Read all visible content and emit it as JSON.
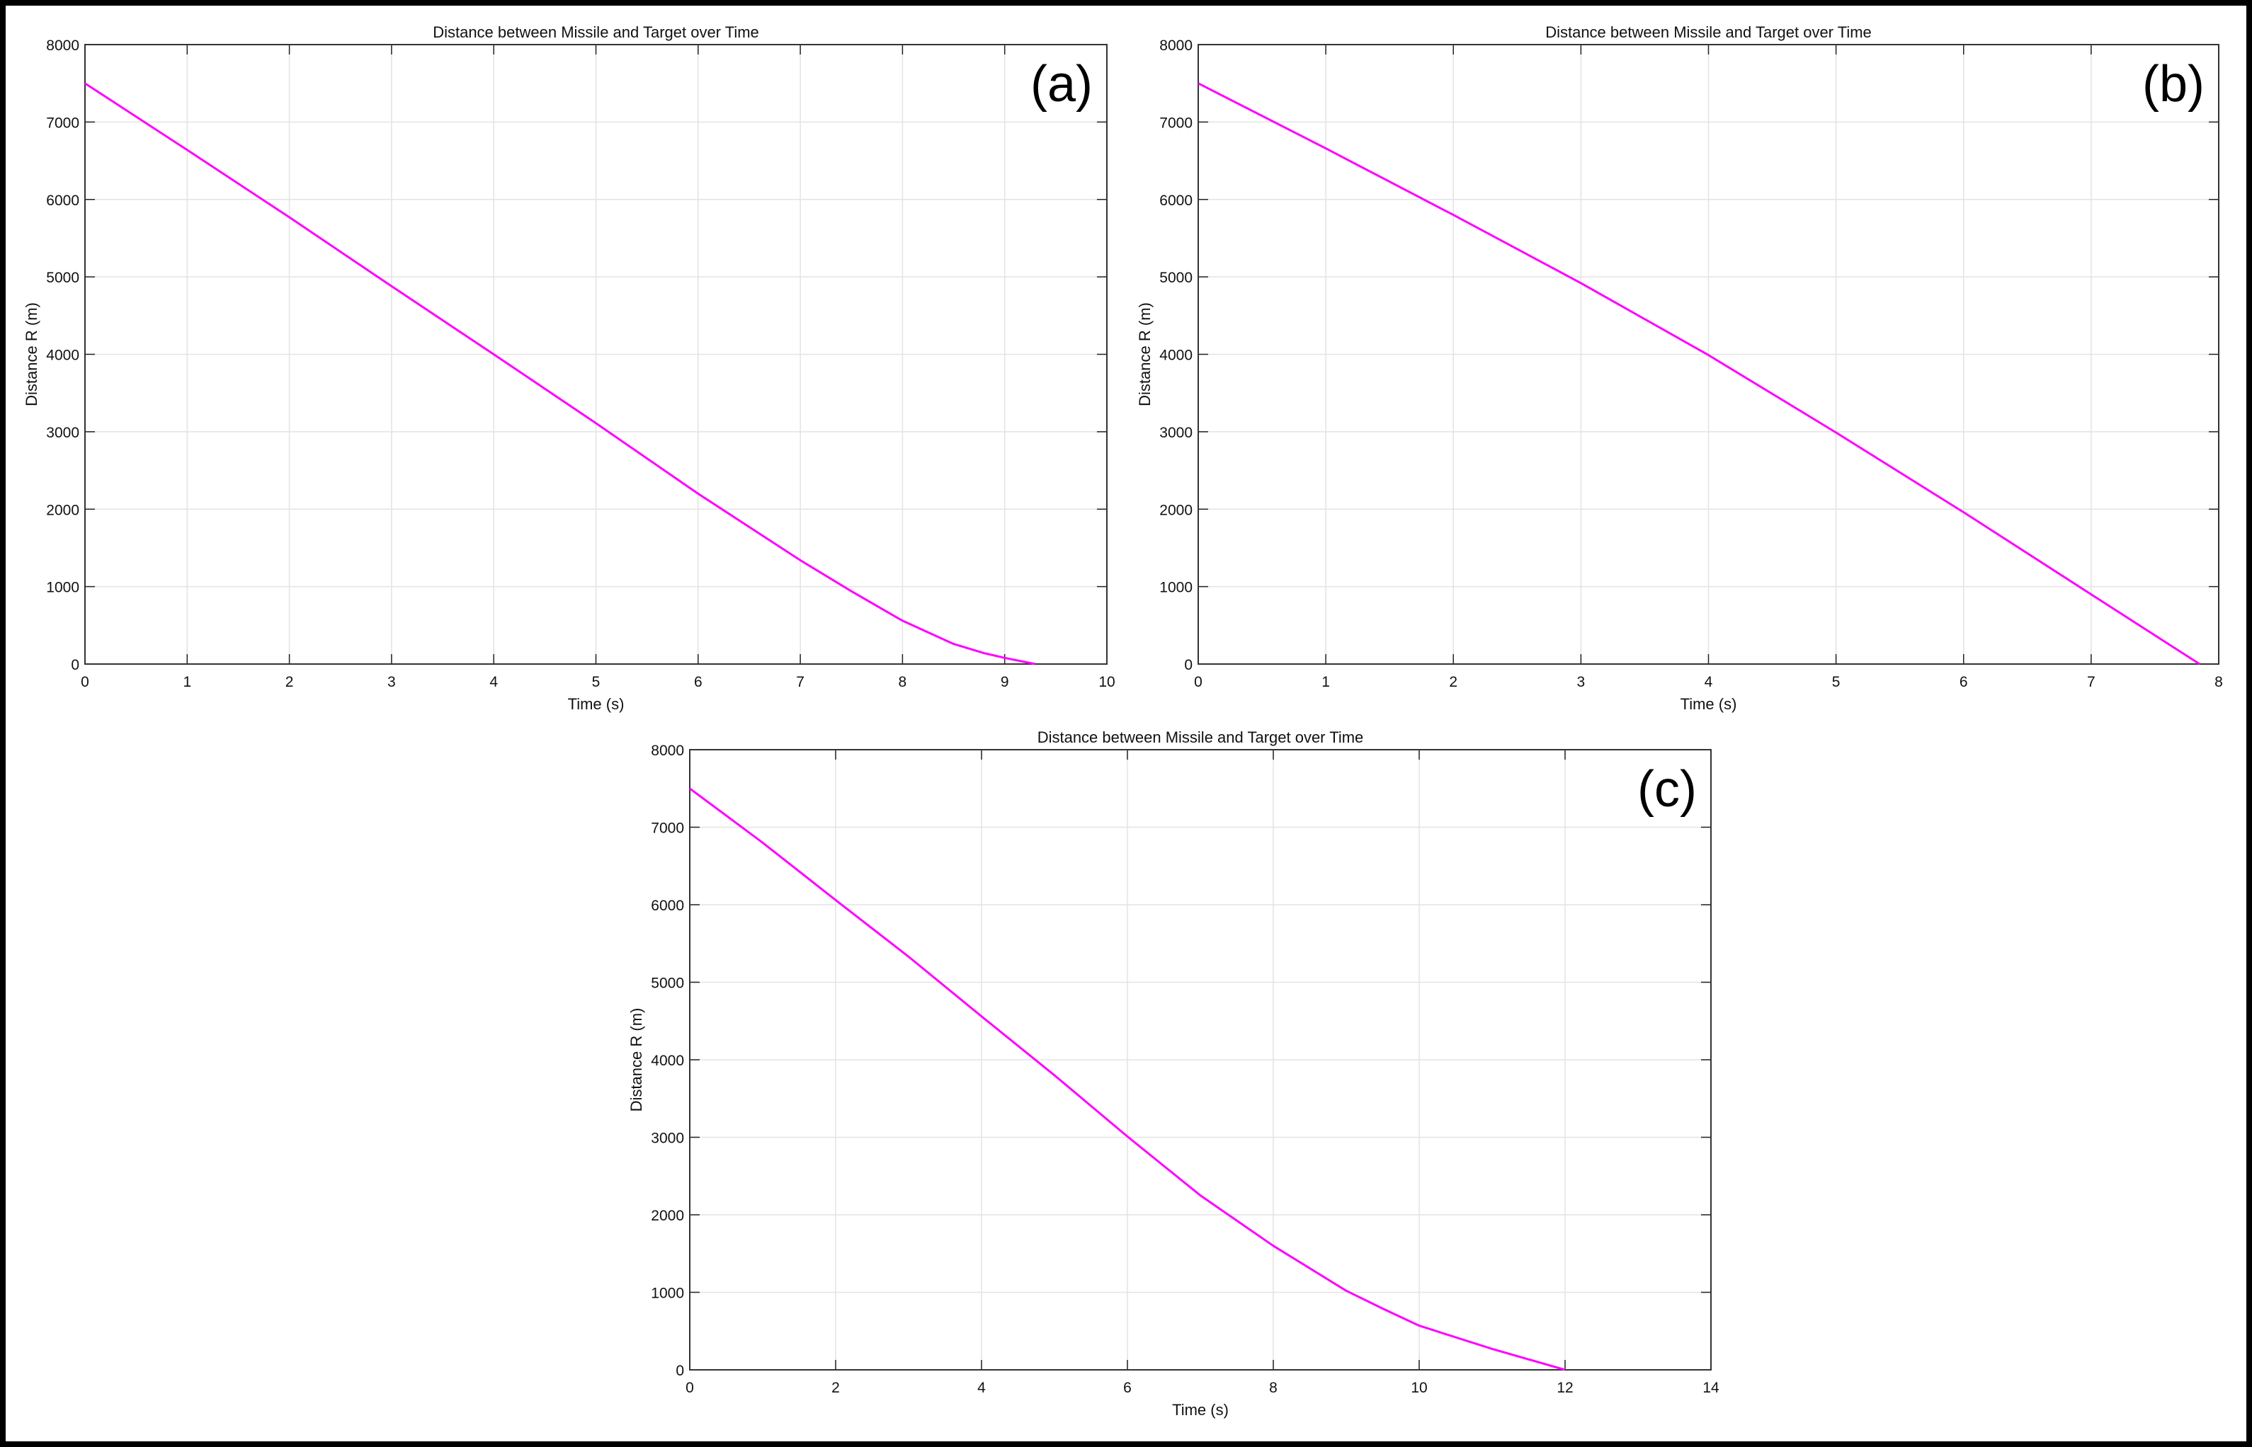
{
  "chart_data": [
    {
      "type": "line",
      "panel_label": "(a)",
      "title": "Distance between Missile and Target over Time",
      "xlabel": "Time (s)",
      "ylabel": "Distance R (m)",
      "xlim": [
        0,
        10
      ],
      "ylim": [
        0,
        8000
      ],
      "xticks": [
        0,
        1,
        2,
        3,
        4,
        5,
        6,
        7,
        8,
        9,
        10
      ],
      "yticks": [
        0,
        1000,
        2000,
        3000,
        4000,
        5000,
        6000,
        7000,
        8000
      ],
      "grid": true,
      "color": "#ff00ff",
      "series": [
        {
          "x": [
            0,
            1,
            2,
            3,
            4,
            5,
            6,
            7,
            7.5,
            8,
            8.5,
            8.8,
            9,
            9.3
          ],
          "y": [
            7500,
            6640,
            5770,
            4880,
            4000,
            3110,
            2200,
            1340,
            940,
            560,
            260,
            140,
            80,
            0
          ]
        }
      ]
    },
    {
      "type": "line",
      "panel_label": "(b)",
      "title": "Distance between Missile and Target over Time",
      "xlabel": "Time (s)",
      "ylabel": "Distance R (m)",
      "xlim": [
        0,
        8
      ],
      "ylim": [
        0,
        8000
      ],
      "xticks": [
        0,
        1,
        2,
        3,
        4,
        5,
        6,
        7,
        8
      ],
      "yticks": [
        0,
        1000,
        2000,
        3000,
        4000,
        5000,
        6000,
        7000,
        8000
      ],
      "grid": true,
      "color": "#ff00ff",
      "series": [
        {
          "x": [
            0,
            1,
            2,
            3,
            4,
            5,
            6,
            7,
            7.85
          ],
          "y": [
            7500,
            6660,
            5800,
            4920,
            3990,
            2990,
            1960,
            900,
            0
          ]
        }
      ]
    },
    {
      "type": "line",
      "panel_label": "(c)",
      "title": "Distance between Missile and Target over Time",
      "xlabel": "Time (s)",
      "ylabel": "Distance R (m)",
      "xlim": [
        0,
        14
      ],
      "ylim": [
        0,
        8000
      ],
      "xticks": [
        0,
        2,
        4,
        6,
        8,
        10,
        12,
        14
      ],
      "yticks": [
        0,
        1000,
        2000,
        3000,
        4000,
        5000,
        6000,
        7000,
        8000
      ],
      "grid": true,
      "color": "#ff00ff",
      "series": [
        {
          "x": [
            0,
            1,
            2,
            3,
            4,
            5,
            6,
            7,
            8,
            9,
            9.5,
            10,
            11,
            12
          ],
          "y": [
            7500,
            6800,
            6060,
            5330,
            4560,
            3800,
            3010,
            2250,
            1600,
            1020,
            790,
            570,
            270,
            0
          ]
        }
      ]
    }
  ]
}
